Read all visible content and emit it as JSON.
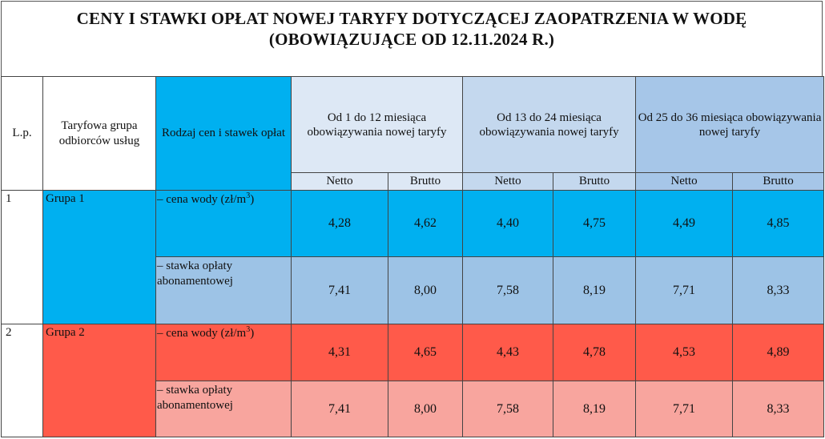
{
  "title": {
    "line1": "CENY I STAWKI OPŁAT NOWEJ TARYFY DOTYCZĄCEJ ZAOPATRZENIA W WODĘ",
    "line2": "(OBOWIĄZUJĄCE OD 12.11.2024 R.)"
  },
  "header": {
    "lp": "L.p.",
    "group": "Taryfowa grupa odbiorców usług",
    "kind": "Rodzaj cen i stawek opłat",
    "periods": [
      "Od 1 do 12 miesiąca obowiązywania nowej taryfy",
      "Od 13 do 24 miesiąca obowiązywania nowej taryfy",
      "Od 25  do 36 miesiąca obowiązywania nowej taryfy"
    ],
    "netto": "Netto",
    "brutto": "Brutto"
  },
  "groups": [
    {
      "number": "1",
      "name": "Grupa 1",
      "colors": {
        "primary": "#00b0f0",
        "secondary": "#9dc3e6"
      },
      "rows": [
        {
          "kind": "– cena wody (zł/m",
          "kind_sup": "3",
          "kind_suffix": ")",
          "values": [
            "4,28",
            "4,62",
            "4,40",
            "4,75",
            "4,49",
            "4,85"
          ]
        },
        {
          "kind": "– stawka opłaty abonamentowej",
          "values": [
            "7,41",
            "8,00",
            "7,58",
            "8,19",
            "7,71",
            "8,33"
          ]
        }
      ]
    },
    {
      "number": "2",
      "name": "Grupa 2",
      "colors": {
        "primary": "#ff5a4a",
        "secondary": "#f8a59e"
      },
      "rows": [
        {
          "kind": "– cena wody (zł/m",
          "kind_sup": "3",
          "kind_suffix": ")",
          "values": [
            "4,31",
            "4,65",
            "4,43",
            "4,78",
            "4,53",
            "4,89"
          ]
        },
        {
          "kind": "– stawka opłaty abonamentowej",
          "values": [
            "7,41",
            "8,00",
            "7,58",
            "8,19",
            "7,71",
            "8,33"
          ]
        }
      ]
    }
  ]
}
